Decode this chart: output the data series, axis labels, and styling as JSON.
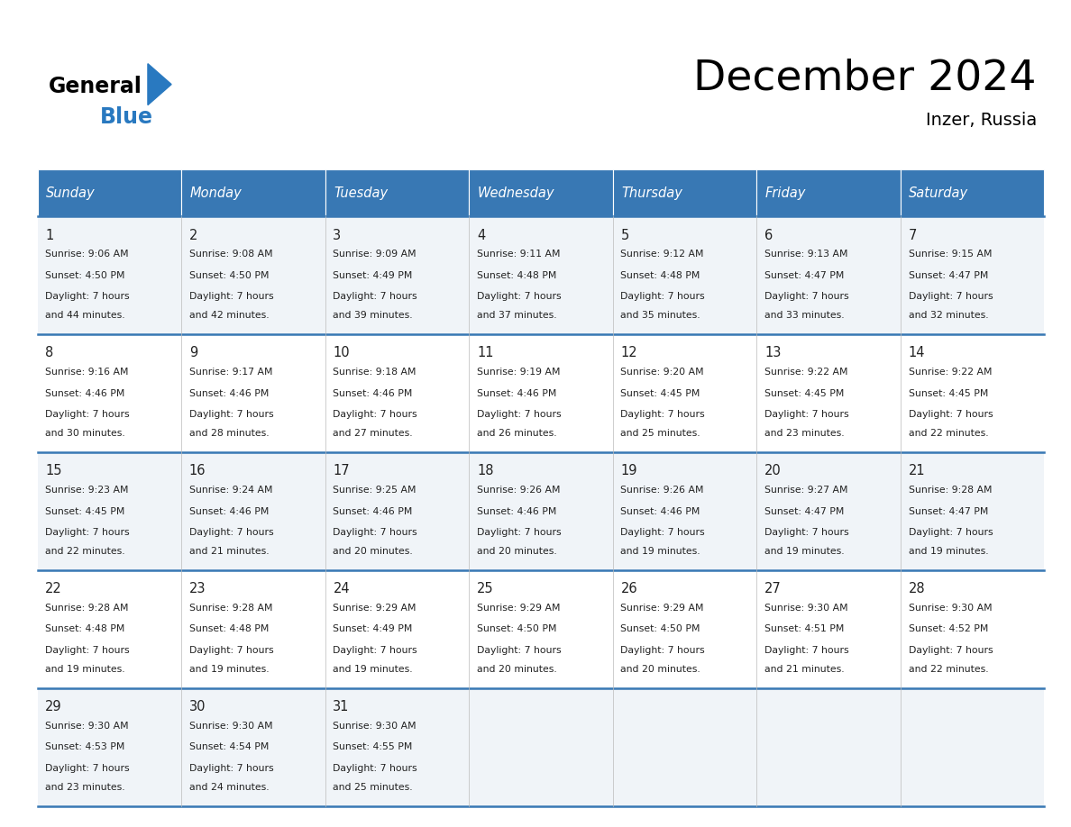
{
  "title": "December 2024",
  "subtitle": "Inzer, Russia",
  "header_bg": "#3878b4",
  "header_text_color": "#ffffff",
  "row_bg_light": "#f0f4f8",
  "row_bg_white": "#ffffff",
  "cell_border_color": "#3878b4",
  "text_color": "#222222",
  "day_headers": [
    "Sunday",
    "Monday",
    "Tuesday",
    "Wednesday",
    "Thursday",
    "Friday",
    "Saturday"
  ],
  "days": [
    {
      "day": 1,
      "col": 0,
      "row": 0,
      "sunrise": "9:06 AM",
      "sunset": "4:50 PM",
      "dl_min": "44"
    },
    {
      "day": 2,
      "col": 1,
      "row": 0,
      "sunrise": "9:08 AM",
      "sunset": "4:50 PM",
      "dl_min": "42"
    },
    {
      "day": 3,
      "col": 2,
      "row": 0,
      "sunrise": "9:09 AM",
      "sunset": "4:49 PM",
      "dl_min": "39"
    },
    {
      "day": 4,
      "col": 3,
      "row": 0,
      "sunrise": "9:11 AM",
      "sunset": "4:48 PM",
      "dl_min": "37"
    },
    {
      "day": 5,
      "col": 4,
      "row": 0,
      "sunrise": "9:12 AM",
      "sunset": "4:48 PM",
      "dl_min": "35"
    },
    {
      "day": 6,
      "col": 5,
      "row": 0,
      "sunrise": "9:13 AM",
      "sunset": "4:47 PM",
      "dl_min": "33"
    },
    {
      "day": 7,
      "col": 6,
      "row": 0,
      "sunrise": "9:15 AM",
      "sunset": "4:47 PM",
      "dl_min": "32"
    },
    {
      "day": 8,
      "col": 0,
      "row": 1,
      "sunrise": "9:16 AM",
      "sunset": "4:46 PM",
      "dl_min": "30"
    },
    {
      "day": 9,
      "col": 1,
      "row": 1,
      "sunrise": "9:17 AM",
      "sunset": "4:46 PM",
      "dl_min": "28"
    },
    {
      "day": 10,
      "col": 2,
      "row": 1,
      "sunrise": "9:18 AM",
      "sunset": "4:46 PM",
      "dl_min": "27"
    },
    {
      "day": 11,
      "col": 3,
      "row": 1,
      "sunrise": "9:19 AM",
      "sunset": "4:46 PM",
      "dl_min": "26"
    },
    {
      "day": 12,
      "col": 4,
      "row": 1,
      "sunrise": "9:20 AM",
      "sunset": "4:45 PM",
      "dl_min": "25"
    },
    {
      "day": 13,
      "col": 5,
      "row": 1,
      "sunrise": "9:22 AM",
      "sunset": "4:45 PM",
      "dl_min": "23"
    },
    {
      "day": 14,
      "col": 6,
      "row": 1,
      "sunrise": "9:22 AM",
      "sunset": "4:45 PM",
      "dl_min": "22"
    },
    {
      "day": 15,
      "col": 0,
      "row": 2,
      "sunrise": "9:23 AM",
      "sunset": "4:45 PM",
      "dl_min": "22"
    },
    {
      "day": 16,
      "col": 1,
      "row": 2,
      "sunrise": "9:24 AM",
      "sunset": "4:46 PM",
      "dl_min": "21"
    },
    {
      "day": 17,
      "col": 2,
      "row": 2,
      "sunrise": "9:25 AM",
      "sunset": "4:46 PM",
      "dl_min": "20"
    },
    {
      "day": 18,
      "col": 3,
      "row": 2,
      "sunrise": "9:26 AM",
      "sunset": "4:46 PM",
      "dl_min": "20"
    },
    {
      "day": 19,
      "col": 4,
      "row": 2,
      "sunrise": "9:26 AM",
      "sunset": "4:46 PM",
      "dl_min": "19"
    },
    {
      "day": 20,
      "col": 5,
      "row": 2,
      "sunrise": "9:27 AM",
      "sunset": "4:47 PM",
      "dl_min": "19"
    },
    {
      "day": 21,
      "col": 6,
      "row": 2,
      "sunrise": "9:28 AM",
      "sunset": "4:47 PM",
      "dl_min": "19"
    },
    {
      "day": 22,
      "col": 0,
      "row": 3,
      "sunrise": "9:28 AM",
      "sunset": "4:48 PM",
      "dl_min": "19"
    },
    {
      "day": 23,
      "col": 1,
      "row": 3,
      "sunrise": "9:28 AM",
      "sunset": "4:48 PM",
      "dl_min": "19"
    },
    {
      "day": 24,
      "col": 2,
      "row": 3,
      "sunrise": "9:29 AM",
      "sunset": "4:49 PM",
      "dl_min": "19"
    },
    {
      "day": 25,
      "col": 3,
      "row": 3,
      "sunrise": "9:29 AM",
      "sunset": "4:50 PM",
      "dl_min": "20"
    },
    {
      "day": 26,
      "col": 4,
      "row": 3,
      "sunrise": "9:29 AM",
      "sunset": "4:50 PM",
      "dl_min": "20"
    },
    {
      "day": 27,
      "col": 5,
      "row": 3,
      "sunrise": "9:30 AM",
      "sunset": "4:51 PM",
      "dl_min": "21"
    },
    {
      "day": 28,
      "col": 6,
      "row": 3,
      "sunrise": "9:30 AM",
      "sunset": "4:52 PM",
      "dl_min": "22"
    },
    {
      "day": 29,
      "col": 0,
      "row": 4,
      "sunrise": "9:30 AM",
      "sunset": "4:53 PM",
      "dl_min": "23"
    },
    {
      "day": 30,
      "col": 1,
      "row": 4,
      "sunrise": "9:30 AM",
      "sunset": "4:54 PM",
      "dl_min": "24"
    },
    {
      "day": 31,
      "col": 2,
      "row": 4,
      "sunrise": "9:30 AM",
      "sunset": "4:55 PM",
      "dl_min": "25"
    }
  ]
}
